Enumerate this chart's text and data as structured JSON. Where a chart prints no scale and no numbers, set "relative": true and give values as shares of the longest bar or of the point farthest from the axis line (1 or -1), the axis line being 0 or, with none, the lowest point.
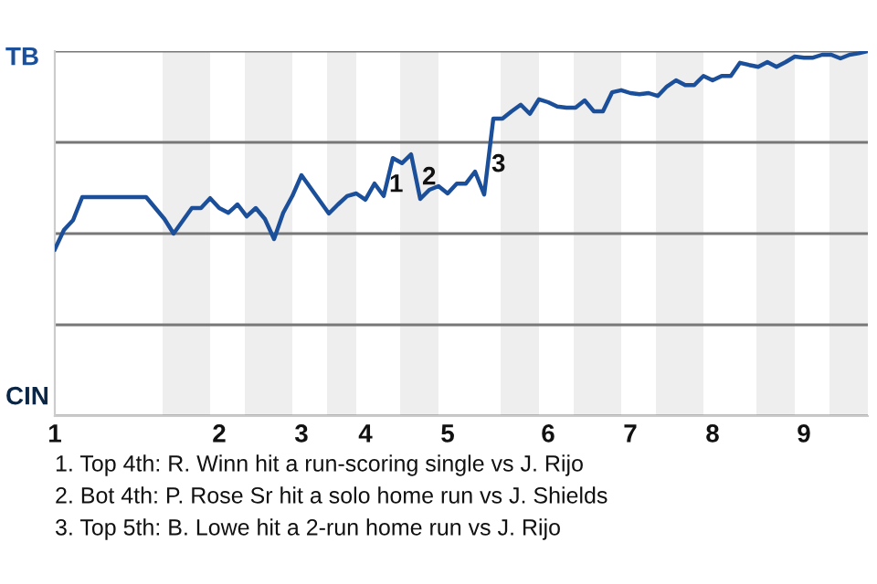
{
  "chart_data": {
    "type": "line",
    "relative": true,
    "categories": [
      "1",
      null,
      null,
      null,
      null,
      null,
      null,
      null,
      null,
      null,
      null,
      null,
      null,
      null,
      null,
      null,
      null,
      null,
      "2",
      null,
      null,
      null,
      null,
      null,
      null,
      null,
      null,
      "3",
      null,
      null,
      null,
      null,
      null,
      null,
      "4",
      null,
      null,
      null,
      null,
      null,
      null,
      null,
      null,
      "5",
      null,
      null,
      null,
      null,
      null,
      null,
      null,
      null,
      null,
      null,
      "6",
      null,
      null,
      null,
      null,
      null,
      null,
      null,
      null,
      "7",
      null,
      null,
      null,
      null,
      null,
      null,
      null,
      null,
      "8",
      null,
      null,
      null,
      null,
      null,
      null,
      null,
      null,
      null,
      "9",
      null,
      null,
      null,
      null,
      null,
      null,
      null
    ],
    "series": [
      {
        "color": "#1c4f9a",
        "values": [
          0.457,
          0.51,
          0.537,
          0.6,
          0.6,
          0.6,
          0.6,
          0.6,
          0.6,
          0.6,
          0.6,
          0.57,
          0.54,
          0.5,
          0.535,
          0.57,
          0.57,
          0.597,
          0.57,
          0.557,
          0.58,
          0.547,
          0.57,
          0.54,
          0.485,
          0.557,
          0.603,
          0.66,
          0.625,
          0.59,
          0.555,
          0.58,
          0.603,
          0.61,
          0.593,
          0.637,
          0.603,
          0.707,
          0.693,
          0.717,
          0.595,
          0.62,
          0.63,
          0.61,
          0.637,
          0.637,
          0.67,
          0.607,
          0.815,
          0.815,
          0.835,
          0.853,
          0.828,
          0.868,
          0.86,
          0.848,
          0.845,
          0.845,
          0.865,
          0.835,
          0.835,
          0.887,
          0.893,
          0.885,
          0.882,
          0.885,
          0.877,
          0.903,
          0.92,
          0.907,
          0.907,
          0.932,
          0.92,
          0.932,
          0.932,
          0.968,
          0.962,
          0.957,
          0.97,
          0.957,
          0.97,
          0.985,
          0.982,
          0.982,
          0.99,
          0.99,
          0.98,
          0.99,
          0.994,
          1
        ]
      }
    ],
    "grid": "y",
    "marker": "none",
    "line_style": "solid",
    "annotations": [
      "TB",
      "CIN",
      "1",
      "2",
      "3",
      "1. Top 4th: R. Winn hit a run-scoring single vs J. Rijo",
      "2. Bot 4th: P. Rose Sr hit a solo home run vs J. Shields",
      "3. Top 5th: B. Lowe hit a 2-run home run vs J. Rijo"
    ]
  }
}
